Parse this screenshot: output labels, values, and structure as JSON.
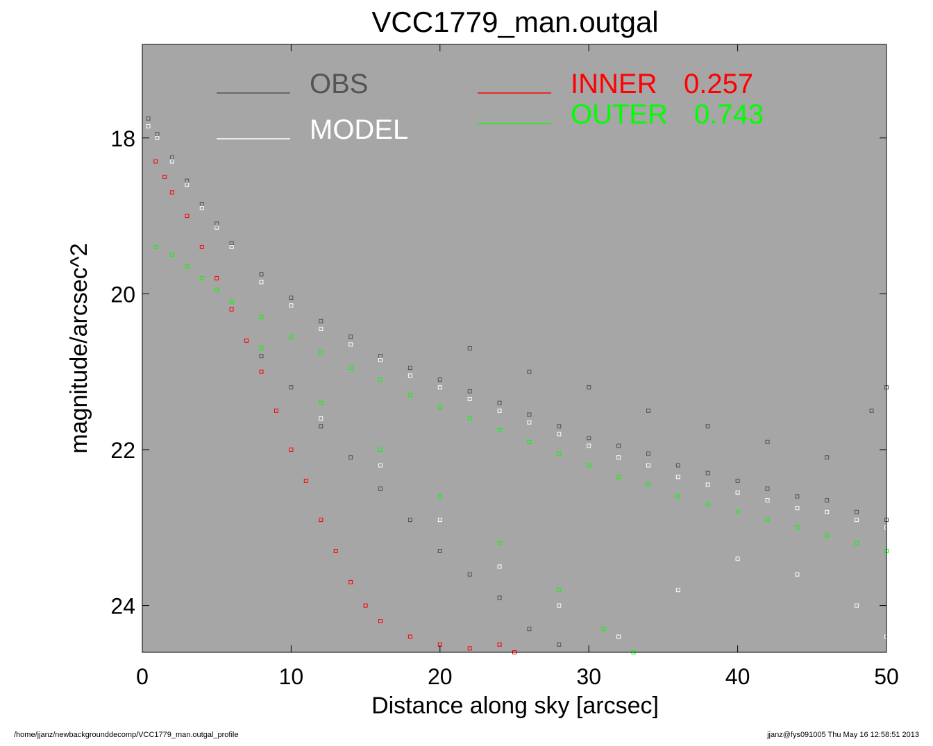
{
  "chart_data": {
    "type": "scatter",
    "title": "VCC1779_man.outgal",
    "xlabel": "Distance along sky [arcsec]",
    "ylabel": "magnitude/arcsec^2",
    "xlim": [
      0,
      50
    ],
    "ylim": [
      24.6,
      16.8
    ],
    "y_inverted": true,
    "xticks": [
      0,
      10,
      20,
      30,
      40,
      50
    ],
    "xtick_labels": [
      "0",
      "10",
      "20",
      "30",
      "40",
      "50"
    ],
    "yticks": [
      18,
      20,
      22,
      24
    ],
    "ytick_labels": [
      "18",
      "20",
      "22",
      "24"
    ],
    "grid": false,
    "plot_background": "#a6a6a6",
    "legend_placement": "top",
    "legend": [
      {
        "label": "OBS",
        "color": "#555555"
      },
      {
        "label": "MODEL",
        "color": "#ffffff"
      },
      {
        "label": "INNER",
        "value": "0.257",
        "color": "#ff0000"
      },
      {
        "label": "OUTER",
        "value": "0.743",
        "color": "#00ff00"
      }
    ],
    "series": [
      {
        "name": "OBS",
        "color": "#505050",
        "points": [
          [
            0.4,
            17.75
          ],
          [
            1.0,
            17.95
          ],
          [
            2.0,
            18.25
          ],
          [
            3.0,
            18.55
          ],
          [
            4.0,
            18.85
          ],
          [
            5.0,
            19.1
          ],
          [
            6.0,
            19.35
          ],
          [
            8.0,
            19.75
          ],
          [
            10.0,
            20.05
          ],
          [
            12.0,
            20.35
          ],
          [
            14.0,
            20.55
          ],
          [
            16.0,
            20.8
          ],
          [
            18.0,
            20.95
          ],
          [
            20.0,
            21.1
          ],
          [
            22.0,
            21.25
          ],
          [
            24.0,
            21.4
          ],
          [
            26.0,
            21.55
          ],
          [
            28.0,
            21.7
          ],
          [
            30.0,
            21.85
          ],
          [
            32.0,
            21.95
          ],
          [
            34.0,
            22.05
          ],
          [
            36.0,
            22.2
          ],
          [
            38.0,
            22.3
          ],
          [
            40.0,
            22.4
          ],
          [
            42.0,
            22.5
          ],
          [
            44.0,
            22.6
          ],
          [
            46.0,
            22.65
          ],
          [
            48.0,
            22.8
          ],
          [
            50.0,
            22.9
          ],
          [
            8.0,
            20.8
          ],
          [
            10.0,
            21.2
          ],
          [
            12.0,
            21.7
          ],
          [
            14.0,
            22.1
          ],
          [
            16.0,
            22.5
          ],
          [
            18.0,
            22.9
          ],
          [
            20.0,
            23.3
          ],
          [
            22.0,
            23.6
          ],
          [
            24.0,
            23.9
          ],
          [
            26.0,
            24.3
          ],
          [
            28.0,
            24.5
          ],
          [
            22.0,
            20.7
          ],
          [
            26.0,
            21.0
          ],
          [
            30.0,
            21.2
          ],
          [
            34.0,
            21.5
          ],
          [
            38.0,
            21.7
          ],
          [
            42.0,
            21.9
          ],
          [
            46.0,
            22.1
          ],
          [
            49.0,
            21.5
          ],
          [
            50.0,
            21.2
          ]
        ]
      },
      {
        "name": "MODEL",
        "color": "#ffffff",
        "points": [
          [
            0.4,
            17.85
          ],
          [
            1.0,
            18.0
          ],
          [
            2.0,
            18.3
          ],
          [
            3.0,
            18.6
          ],
          [
            4.0,
            18.9
          ],
          [
            5.0,
            19.15
          ],
          [
            6.0,
            19.4
          ],
          [
            8.0,
            19.85
          ],
          [
            10.0,
            20.15
          ],
          [
            12.0,
            20.45
          ],
          [
            14.0,
            20.65
          ],
          [
            16.0,
            20.85
          ],
          [
            18.0,
            21.05
          ],
          [
            20.0,
            21.2
          ],
          [
            22.0,
            21.35
          ],
          [
            24.0,
            21.5
          ],
          [
            26.0,
            21.65
          ],
          [
            28.0,
            21.8
          ],
          [
            30.0,
            21.95
          ],
          [
            32.0,
            22.1
          ],
          [
            34.0,
            22.2
          ],
          [
            36.0,
            22.35
          ],
          [
            38.0,
            22.45
          ],
          [
            40.0,
            22.55
          ],
          [
            42.0,
            22.65
          ],
          [
            44.0,
            22.75
          ],
          [
            46.0,
            22.8
          ],
          [
            48.0,
            22.9
          ],
          [
            50.0,
            23.0
          ],
          [
            12.0,
            21.6
          ],
          [
            16.0,
            22.2
          ],
          [
            20.0,
            22.9
          ],
          [
            24.0,
            23.5
          ],
          [
            28.0,
            24.0
          ],
          [
            32.0,
            24.4
          ],
          [
            36.0,
            23.8
          ],
          [
            40.0,
            23.4
          ],
          [
            44.0,
            23.6
          ],
          [
            48.0,
            24.0
          ],
          [
            50.0,
            24.4
          ]
        ]
      },
      {
        "name": "INNER",
        "color": "#ff0000",
        "points": [
          [
            0.9,
            18.3
          ],
          [
            1.5,
            18.5
          ],
          [
            2.0,
            18.7
          ],
          [
            3.0,
            19.0
          ],
          [
            4.0,
            19.4
          ],
          [
            5.0,
            19.8
          ],
          [
            6.0,
            20.2
          ],
          [
            7.0,
            20.6
          ],
          [
            8.0,
            21.0
          ],
          [
            9.0,
            21.5
          ],
          [
            10.0,
            22.0
          ],
          [
            11.0,
            22.4
          ],
          [
            12.0,
            22.9
          ],
          [
            13.0,
            23.3
          ],
          [
            14.0,
            23.7
          ],
          [
            15.0,
            24.0
          ],
          [
            16.0,
            24.2
          ],
          [
            18.0,
            24.4
          ],
          [
            20.0,
            24.5
          ],
          [
            22.0,
            24.55
          ],
          [
            24.0,
            24.5
          ],
          [
            25.0,
            24.6
          ]
        ]
      },
      {
        "name": "OUTER",
        "color": "#00ff00",
        "points": [
          [
            0.9,
            19.4
          ],
          [
            2.0,
            19.5
          ],
          [
            3.0,
            19.65
          ],
          [
            4.0,
            19.8
          ],
          [
            5.0,
            19.95
          ],
          [
            6.0,
            20.1
          ],
          [
            8.0,
            20.3
          ],
          [
            10.0,
            20.55
          ],
          [
            12.0,
            20.75
          ],
          [
            14.0,
            20.95
          ],
          [
            16.0,
            21.1
          ],
          [
            18.0,
            21.3
          ],
          [
            20.0,
            21.45
          ],
          [
            22.0,
            21.6
          ],
          [
            24.0,
            21.75
          ],
          [
            26.0,
            21.9
          ],
          [
            28.0,
            22.05
          ],
          [
            30.0,
            22.2
          ],
          [
            32.0,
            22.35
          ],
          [
            34.0,
            22.45
          ],
          [
            36.0,
            22.6
          ],
          [
            38.0,
            22.7
          ],
          [
            40.0,
            22.8
          ],
          [
            42.0,
            22.9
          ],
          [
            44.0,
            23.0
          ],
          [
            46.0,
            23.1
          ],
          [
            48.0,
            23.2
          ],
          [
            50.0,
            23.3
          ],
          [
            8.0,
            20.7
          ],
          [
            12.0,
            21.4
          ],
          [
            16.0,
            22.0
          ],
          [
            20.0,
            22.6
          ],
          [
            24.0,
            23.2
          ],
          [
            28.0,
            23.8
          ],
          [
            31.0,
            24.3
          ],
          [
            33.0,
            24.6
          ]
        ]
      }
    ]
  },
  "footer": {
    "left": "/home/jjanz/newbackgrounddecomp/VCC1779_man.outgal_profile",
    "right": "jjanz@fys091005  Thu May 16 12:58:51 2013"
  }
}
